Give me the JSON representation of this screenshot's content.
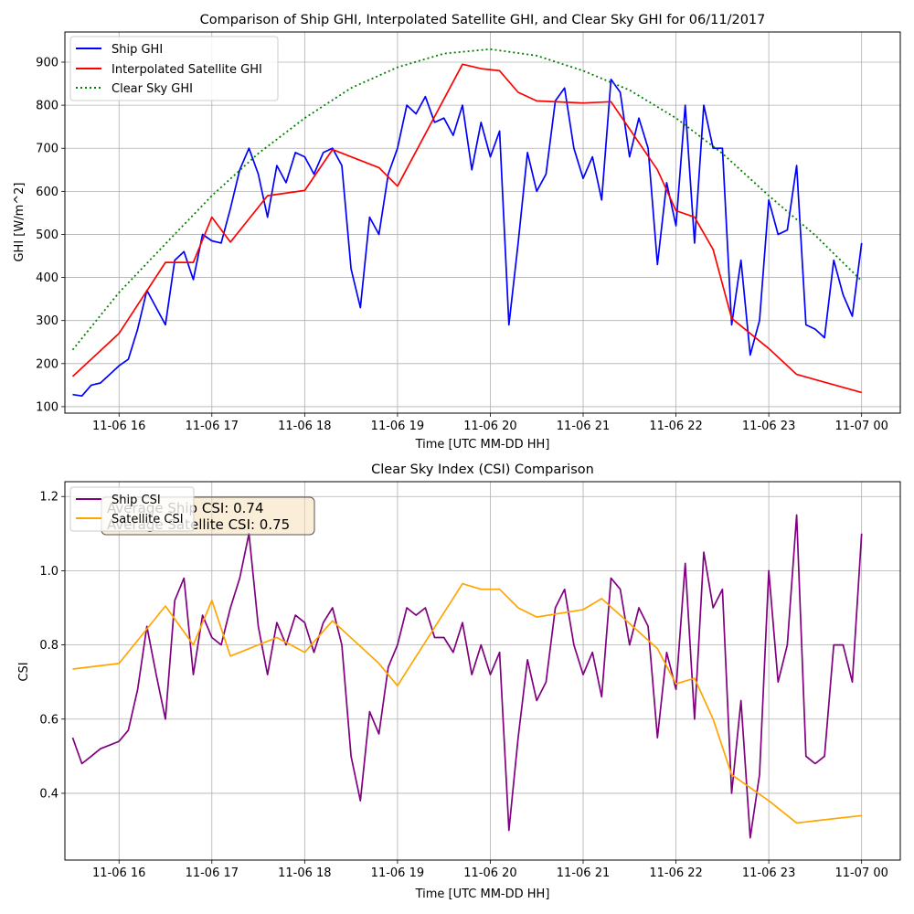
{
  "colors": {
    "ship_ghi": "#0000ff",
    "satellite_ghi": "#ff0000",
    "clear_sky": "#008000",
    "ship_csi": "#800080",
    "satellite_csi": "#ffa500",
    "grid": "#b0b0b0",
    "textbox_fill": "#f5deb3"
  },
  "chart_data": [
    {
      "type": "line",
      "title": "Comparison of Ship GHI, Interpolated Satellite GHI, and Clear Sky GHI for 06/11/2017",
      "xlabel": "Time [UTC MM-DD HH]",
      "ylabel": "GHI [W/m^2]",
      "grid": true,
      "legend_position": "upper left",
      "xlim": [
        "2017-11-06T15:25",
        "2017-11-07T00:25"
      ],
      "ylim": [
        85,
        970
      ],
      "x_ticks": [
        "11-06 16",
        "11-06 17",
        "11-06 18",
        "11-06 19",
        "11-06 20",
        "11-06 21",
        "11-06 22",
        "11-06 23",
        "11-07 00"
      ],
      "y_ticks": [
        100,
        200,
        300,
        400,
        500,
        600,
        700,
        800,
        900
      ],
      "series": [
        {
          "name": "Ship GHI",
          "style": "solid",
          "x": [
            "15:30",
            "15:36",
            "15:42",
            "15:48",
            "15:54",
            "16:00",
            "16:06",
            "16:12",
            "16:18",
            "16:24",
            "16:30",
            "16:36",
            "16:42",
            "16:48",
            "16:54",
            "17:00",
            "17:06",
            "17:12",
            "17:18",
            "17:24",
            "17:30",
            "17:36",
            "17:42",
            "17:48",
            "17:54",
            "18:00",
            "18:06",
            "18:12",
            "18:18",
            "18:24",
            "18:30",
            "18:36",
            "18:42",
            "18:48",
            "18:54",
            "19:00",
            "19:06",
            "19:12",
            "19:18",
            "19:24",
            "19:30",
            "19:36",
            "19:42",
            "19:48",
            "19:54",
            "20:00",
            "20:06",
            "20:12",
            "20:18",
            "20:24",
            "20:30",
            "20:36",
            "20:42",
            "20:48",
            "20:54",
            "21:00",
            "21:06",
            "21:12",
            "21:18",
            "21:24",
            "21:30",
            "21:36",
            "21:42",
            "21:48",
            "21:54",
            "22:00",
            "22:06",
            "22:12",
            "22:18",
            "22:24",
            "22:30",
            "22:36",
            "22:42",
            "22:48",
            "22:54",
            "23:00",
            "23:06",
            "23:12",
            "23:18",
            "23:24",
            "23:30",
            "23:36",
            "23:42",
            "23:48",
            "23:54",
            "24:00"
          ],
          "y": [
            128,
            125,
            150,
            155,
            175,
            195,
            210,
            280,
            370,
            330,
            290,
            440,
            460,
            395,
            500,
            485,
            480,
            560,
            650,
            700,
            640,
            540,
            660,
            620,
            690,
            680,
            640,
            690,
            700,
            660,
            420,
            330,
            540,
            500,
            640,
            700,
            800,
            780,
            820,
            760,
            770,
            730,
            800,
            650,
            760,
            680,
            740,
            290,
            480,
            690,
            600,
            640,
            810,
            840,
            700,
            630,
            680,
            580,
            860,
            830,
            680,
            770,
            700,
            430,
            620,
            520,
            800,
            480,
            800,
            700,
            700,
            290,
            440,
            220,
            300,
            580,
            500,
            510,
            660,
            290,
            280,
            260,
            440,
            360,
            310,
            480
          ]
        },
        {
          "name": "Interpolated Satellite GHI",
          "style": "solid",
          "x": [
            "15:30",
            "16:00",
            "16:30",
            "16:48",
            "17:00",
            "17:12",
            "17:36",
            "18:00",
            "18:18",
            "18:48",
            "19:00",
            "19:42",
            "19:54",
            "20:06",
            "20:18",
            "20:30",
            "21:00",
            "21:18",
            "21:48",
            "22:00",
            "22:12",
            "22:24",
            "22:36",
            "23:00",
            "23:18",
            "24:00"
          ],
          "y": [
            170,
            270,
            435,
            435,
            540,
            482,
            590,
            602,
            697,
            655,
            612,
            895,
            885,
            880,
            830,
            810,
            805,
            808,
            650,
            555,
            540,
            465,
            305,
            235,
            175,
            133
          ]
        },
        {
          "name": "Clear Sky GHI",
          "style": "dotted",
          "x": [
            "15:30",
            "16:00",
            "16:30",
            "17:00",
            "17:30",
            "18:00",
            "18:30",
            "19:00",
            "19:30",
            "20:00",
            "20:30",
            "21:00",
            "21:30",
            "22:00",
            "22:30",
            "23:00",
            "23:30",
            "24:00"
          ],
          "y": [
            232,
            365,
            478,
            590,
            688,
            770,
            840,
            888,
            920,
            930,
            915,
            880,
            835,
            770,
            688,
            590,
            498,
            392
          ]
        }
      ]
    },
    {
      "type": "line",
      "title": "Clear Sky Index (CSI) Comparison",
      "xlabel": "Time [UTC MM-DD HH]",
      "ylabel": "CSI",
      "grid": true,
      "legend_position": "upper left",
      "xlim": [
        "2017-11-06T15:25",
        "2017-11-07T00:25"
      ],
      "ylim": [
        0.22,
        1.24
      ],
      "x_ticks": [
        "11-06 16",
        "11-06 17",
        "11-06 18",
        "11-06 19",
        "11-06 20",
        "11-06 21",
        "11-06 22",
        "11-06 23",
        "11-07 00"
      ],
      "y_ticks": [
        0.4,
        0.6,
        0.8,
        1.0,
        1.2
      ],
      "annotations": [
        "Average Ship CSI: 0.74",
        "Average Satellite CSI: 0.75"
      ],
      "series": [
        {
          "name": "Ship CSI",
          "style": "solid",
          "x": [
            "15:30",
            "15:36",
            "15:42",
            "15:48",
            "15:54",
            "16:00",
            "16:06",
            "16:12",
            "16:18",
            "16:24",
            "16:30",
            "16:36",
            "16:42",
            "16:48",
            "16:54",
            "17:00",
            "17:06",
            "17:12",
            "17:18",
            "17:24",
            "17:30",
            "17:36",
            "17:42",
            "17:48",
            "17:54",
            "18:00",
            "18:06",
            "18:12",
            "18:18",
            "18:24",
            "18:30",
            "18:36",
            "18:42",
            "18:48",
            "18:54",
            "19:00",
            "19:06",
            "19:12",
            "19:18",
            "19:24",
            "19:30",
            "19:36",
            "19:42",
            "19:48",
            "19:54",
            "20:00",
            "20:06",
            "20:12",
            "20:18",
            "20:24",
            "20:30",
            "20:36",
            "20:42",
            "20:48",
            "20:54",
            "21:00",
            "21:06",
            "21:12",
            "21:18",
            "21:24",
            "21:30",
            "21:36",
            "21:42",
            "21:48",
            "21:54",
            "22:00",
            "22:06",
            "22:12",
            "22:18",
            "22:24",
            "22:30",
            "22:36",
            "22:42",
            "22:48",
            "22:54",
            "23:00",
            "23:06",
            "23:12",
            "23:18",
            "23:24",
            "23:30",
            "23:36",
            "23:42",
            "23:48",
            "23:54",
            "24:00"
          ],
          "y": [
            0.55,
            0.48,
            0.5,
            0.52,
            0.53,
            0.54,
            0.57,
            0.68,
            0.85,
            0.72,
            0.6,
            0.92,
            0.98,
            0.72,
            0.88,
            0.82,
            0.8,
            0.9,
            0.98,
            1.1,
            0.85,
            0.72,
            0.86,
            0.8,
            0.88,
            0.86,
            0.78,
            0.86,
            0.9,
            0.8,
            0.5,
            0.38,
            0.62,
            0.56,
            0.74,
            0.8,
            0.9,
            0.88,
            0.9,
            0.82,
            0.82,
            0.78,
            0.86,
            0.72,
            0.8,
            0.72,
            0.78,
            0.3,
            0.55,
            0.76,
            0.65,
            0.7,
            0.9,
            0.95,
            0.8,
            0.72,
            0.78,
            0.66,
            0.98,
            0.95,
            0.8,
            0.9,
            0.85,
            0.55,
            0.78,
            0.68,
            1.02,
            0.6,
            1.05,
            0.9,
            0.95,
            0.4,
            0.65,
            0.28,
            0.45,
            1.0,
            0.7,
            0.8,
            1.15,
            0.5,
            0.48,
            0.5,
            0.8,
            0.8,
            0.7,
            1.1
          ]
        },
        {
          "name": "Satellite CSI",
          "style": "solid",
          "x": [
            "15:30",
            "16:00",
            "16:30",
            "16:48",
            "17:00",
            "17:12",
            "17:42",
            "18:00",
            "18:18",
            "18:48",
            "19:00",
            "19:42",
            "19:54",
            "20:06",
            "20:18",
            "20:30",
            "21:00",
            "21:12",
            "21:48",
            "22:00",
            "22:12",
            "22:24",
            "22:36",
            "23:00",
            "23:18",
            "24:00"
          ],
          "y": [
            0.735,
            0.75,
            0.905,
            0.8,
            0.92,
            0.77,
            0.82,
            0.78,
            0.865,
            0.75,
            0.69,
            0.965,
            0.95,
            0.95,
            0.9,
            0.875,
            0.895,
            0.925,
            0.79,
            0.695,
            0.71,
            0.6,
            0.45,
            0.38,
            0.32,
            0.34
          ]
        }
      ]
    }
  ]
}
